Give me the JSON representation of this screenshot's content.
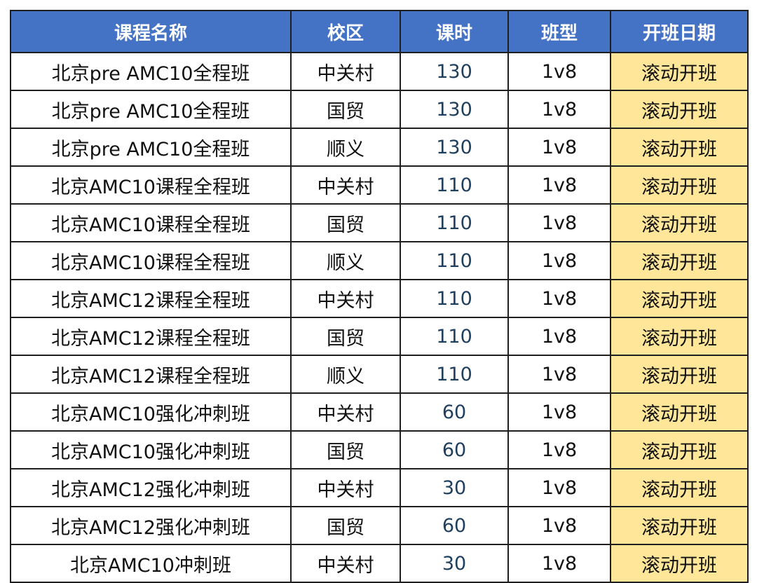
{
  "table": {
    "headers": [
      "课程名称",
      "校区",
      "课时",
      "班型",
      "开班日期"
    ],
    "rows": [
      {
        "name": "北京pre AMC10全程班",
        "campus": "中关村",
        "hours": "130",
        "type": "1v8",
        "date": "滚动开班"
      },
      {
        "name": "北京pre AMC10全程班",
        "campus": "国贸",
        "hours": "130",
        "type": "1v8",
        "date": "滚动开班"
      },
      {
        "name": "北京pre AMC10全程班",
        "campus": "顺义",
        "hours": "130",
        "type": "1v8",
        "date": "滚动开班"
      },
      {
        "name": "北京AMC10课程全程班",
        "campus": "中关村",
        "hours": "110",
        "type": "1v8",
        "date": "滚动开班"
      },
      {
        "name": "北京AMC10课程全程班",
        "campus": "国贸",
        "hours": "110",
        "type": "1v8",
        "date": "滚动开班"
      },
      {
        "name": "北京AMC10课程全程班",
        "campus": "顺义",
        "hours": "110",
        "type": "1v8",
        "date": "滚动开班"
      },
      {
        "name": "北京AMC12课程全程班",
        "campus": "中关村",
        "hours": "110",
        "type": "1v8",
        "date": "滚动开班"
      },
      {
        "name": "北京AMC12课程全程班",
        "campus": "国贸",
        "hours": "110",
        "type": "1v8",
        "date": "滚动开班"
      },
      {
        "name": "北京AMC12课程全程班",
        "campus": "顺义",
        "hours": "110",
        "type": "1v8",
        "date": "滚动开班"
      },
      {
        "name": "北京AMC10强化冲刺班",
        "campus": "中关村",
        "hours": "60",
        "type": "1v8",
        "date": "滚动开班"
      },
      {
        "name": "北京AMC10强化冲刺班",
        "campus": "国贸",
        "hours": "60",
        "type": "1v8",
        "date": "滚动开班"
      },
      {
        "name": "北京AMC12强化冲刺班",
        "campus": "中关村",
        "hours": "30",
        "type": "1v8",
        "date": "滚动开班"
      },
      {
        "name": "北京AMC12强化冲刺班",
        "campus": "国贸",
        "hours": "60",
        "type": "1v8",
        "date": "滚动开班"
      },
      {
        "name": "北京AMC10冲刺班",
        "campus": "中关村",
        "hours": "30",
        "type": "1v8",
        "date": "滚动开班"
      }
    ]
  },
  "colors": {
    "header_bg": "#4472c4",
    "header_text": "#ffffff",
    "date_cell_bg": "#ffe699",
    "hours_text": "#1f3f5f",
    "border": "#1f1f1f"
  }
}
